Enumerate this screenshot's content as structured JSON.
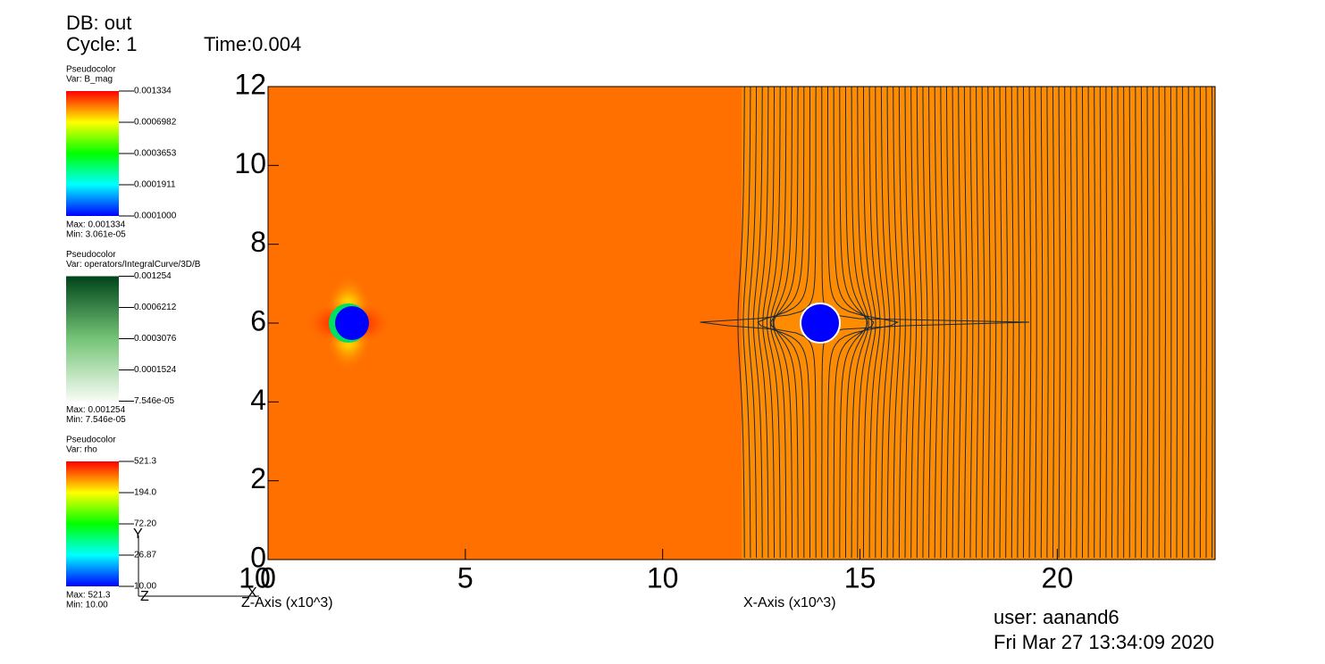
{
  "header": {
    "db": "DB: out",
    "cycle": "Cycle: 1",
    "time": "Time:0.004"
  },
  "legends": [
    {
      "title": "Pseudocolor",
      "var": "Var: B_mag",
      "labels": [
        "0.001334",
        "0.0006982",
        "0.0003653",
        "0.0001911",
        "0.0001000"
      ],
      "max": "Max: 0.001334",
      "min": "Min: 3.061e-05",
      "scheme": "rainbow"
    },
    {
      "title": "Pseudocolor",
      "var": "Var: operators/IntegralCurve/3D/B",
      "labels": [
        "0.001254",
        "0.0006212",
        "0.0003076",
        "0.0001524",
        "7.546e-05"
      ],
      "max": "Max: 0.001254",
      "min": "Min: 7.546e-05",
      "scheme": "greens"
    },
    {
      "title": "Pseudocolor",
      "var": "Var: rho",
      "labels": [
        "521.3",
        "194.0",
        "72.20",
        "26.87",
        "10.00"
      ],
      "max": "Max: 521.3",
      "min": "Min: 10.00",
      "scheme": "rainbow"
    }
  ],
  "chart_data": {
    "type": "field",
    "xlim": [
      0,
      24
    ],
    "ylim": [
      0,
      12
    ],
    "xticks": [
      0,
      5,
      10,
      15,
      20
    ],
    "yticks": [
      0,
      2,
      4,
      6,
      8,
      10,
      12
    ],
    "xlabel": "X-Axis (x10^3)",
    "zlabel": "Z-Axis (x10^3)",
    "zticks": [
      10
    ]
  },
  "triad": {
    "y": "Y",
    "z": "Z",
    "x": "X"
  },
  "footer": {
    "user": "user: aanand6",
    "date": "Fri Mar 27 13:34:09 2020"
  }
}
